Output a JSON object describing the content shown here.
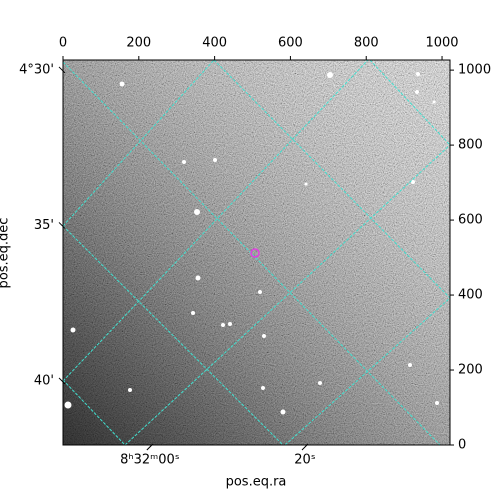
{
  "chart_data": {
    "type": "image",
    "xlabel": "pos.eq.ra",
    "ylabel": "pos.eq.dec",
    "xlim": [
      0,
      1021
    ],
    "ylim": [
      0,
      1027
    ],
    "xticks": [
      0,
      200,
      400,
      600,
      800,
      1000
    ],
    "yticks": [
      0,
      200,
      400,
      600,
      800,
      1000
    ],
    "ralim": [
      -11.2,
      38.7
    ],
    "raticks": [
      {
        "value": 0,
        "label": "8ʰ32ᵐ00ˢ"
      },
      {
        "value": 20,
        "label": "20ˢ"
      }
    ],
    "declim": [
      29.68,
      42.06
    ],
    "decticks": [
      {
        "value": 30,
        "label": "4°30'"
      },
      {
        "value": 35,
        "label": "35'"
      },
      {
        "value": 40,
        "label": "40'"
      }
    ],
    "grid_color": "#40e0d0"
  }
}
